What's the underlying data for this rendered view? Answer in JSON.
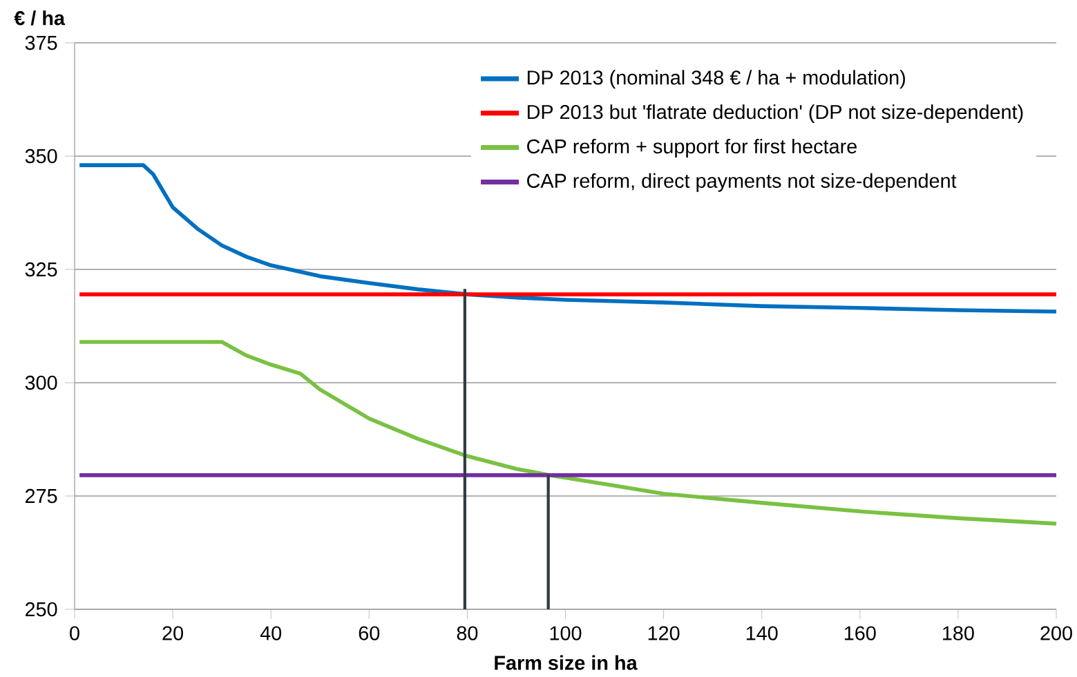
{
  "chart_data": {
    "type": "line",
    "xlabel": "Farm size in ha",
    "ylabel": "€ / ha",
    "xlim": [
      0,
      200
    ],
    "xticks": [
      0,
      20,
      40,
      60,
      80,
      100,
      120,
      140,
      160,
      180,
      200
    ],
    "ylim": [
      250,
      375
    ],
    "yticks": [
      250,
      275,
      300,
      325,
      350,
      375
    ],
    "grid": "y",
    "legend": "top right",
    "marker": "none",
    "line_style": "solid",
    "series": [
      {
        "name": "DP 2013 (nominal 348 € / ha + modulation)",
        "color": "#0070c0",
        "x": [
          1,
          14,
          16,
          20,
          25,
          30,
          35,
          40,
          50,
          60,
          70,
          80,
          90,
          100,
          120,
          140,
          160,
          180,
          200
        ],
        "values": [
          348,
          348,
          346,
          338.7,
          334,
          330.3,
          327.8,
          325.9,
          323.5,
          322,
          320.6,
          319.5,
          318.8,
          318.3,
          317.7,
          316.9,
          316.5,
          316,
          315.7
        ]
      },
      {
        "name": "DP 2013 but 'flatrate deduction' (DP not size-dependent)",
        "color": "#ff0000",
        "x": [
          1,
          200
        ],
        "values": [
          319.5,
          319.5
        ]
      },
      {
        "name": "CAP reform + support for first hectare",
        "color": "#7ac143",
        "x": [
          1,
          30,
          35,
          40,
          46,
          50,
          60,
          70,
          80,
          90,
          96.7,
          110,
          120,
          140,
          160,
          180,
          200
        ],
        "values": [
          309,
          309,
          306,
          304,
          302,
          298.5,
          292.1,
          287.6,
          283.8,
          281,
          279.6,
          277.3,
          275.5,
          273.5,
          271.6,
          270.1,
          268.9
        ]
      },
      {
        "name": "CAP reform, direct payments not size-dependent",
        "color": "#7030a0",
        "x": [
          1,
          200
        ],
        "values": [
          279.6,
          279.6
        ]
      },
      {
        "color": "#2f3b45",
        "x": [
          79.5,
          79.5
        ],
        "values": [
          250,
          320.7
        ]
      },
      {
        "color": "#2f3b45",
        "x": [
          96.5,
          96.5
        ],
        "values": [
          250,
          279.6
        ]
      }
    ]
  }
}
